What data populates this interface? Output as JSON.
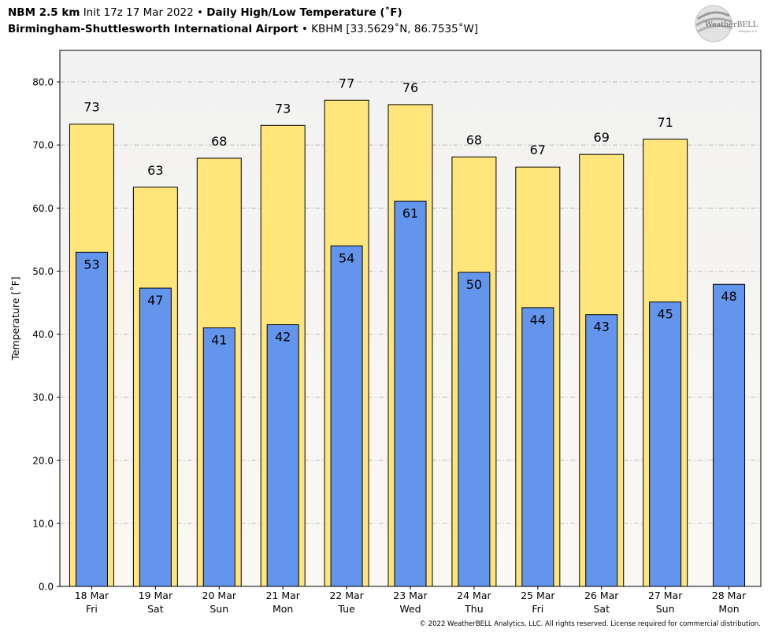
{
  "header": {
    "line1_bold": "NBM 2.5 km",
    "line1_init": "Init 17z 17 Mar 2022",
    "line1_sep": "•",
    "line1_title": "Daily High/Low Temperature (˚F)",
    "line2_bold": "Birmingham-Shuttlesworth International Airport",
    "line2_sep": "•",
    "line2_station": "KBHM [33.5629˚N, 86.7535˚W]"
  },
  "logo": {
    "text_main": "WeatherBELL",
    "text_sub": "Analytics LLC"
  },
  "copyright": "© 2022 WeatherBELL Analytics, LLC. All rights reserved. License required for commercial distribution.",
  "colors": {
    "high_bar": "#FFE57A",
    "low_bar": "#6495ED",
    "plot_bg_top": "#F2F2F2",
    "plot_bg_bottom": "#FAF8F2",
    "grid": "#B0B0B0"
  },
  "chart_data": {
    "type": "bar",
    "title": "Daily High/Low Temperature (˚F)",
    "xlabel": "",
    "ylabel": "Temperature [˚F]",
    "ylim": [
      0,
      85
    ],
    "yticks": [
      "0.0",
      "10.0",
      "20.0",
      "30.0",
      "40.0",
      "50.0",
      "60.0",
      "70.0",
      "80.0"
    ],
    "grid": true,
    "categories": [
      {
        "date": "18 Mar",
        "day": "Fri"
      },
      {
        "date": "19 Mar",
        "day": "Sat"
      },
      {
        "date": "20 Mar",
        "day": "Sun"
      },
      {
        "date": "21 Mar",
        "day": "Mon"
      },
      {
        "date": "22 Mar",
        "day": "Tue"
      },
      {
        "date": "23 Mar",
        "day": "Wed"
      },
      {
        "date": "24 Mar",
        "day": "Thu"
      },
      {
        "date": "25 Mar",
        "day": "Fri"
      },
      {
        "date": "26 Mar",
        "day": "Sat"
      },
      {
        "date": "27 Mar",
        "day": "Sun"
      },
      {
        "date": "28 Mar",
        "day": "Mon"
      }
    ],
    "series": [
      {
        "name": "High",
        "values": [
          73.3,
          63.3,
          67.9,
          73.1,
          77.1,
          76.4,
          68.1,
          66.5,
          68.5,
          70.9,
          null
        ],
        "labels": [
          "73",
          "63",
          "68",
          "73",
          "77",
          "76",
          "68",
          "67",
          "69",
          "71",
          null
        ]
      },
      {
        "name": "Low",
        "values": [
          53.0,
          47.3,
          41.0,
          41.5,
          54.0,
          61.1,
          49.8,
          44.2,
          43.1,
          45.1,
          47.9
        ],
        "labels": [
          "53",
          "47",
          "41",
          "42",
          "54",
          "61",
          "50",
          "44",
          "43",
          "45",
          "48"
        ]
      }
    ]
  }
}
